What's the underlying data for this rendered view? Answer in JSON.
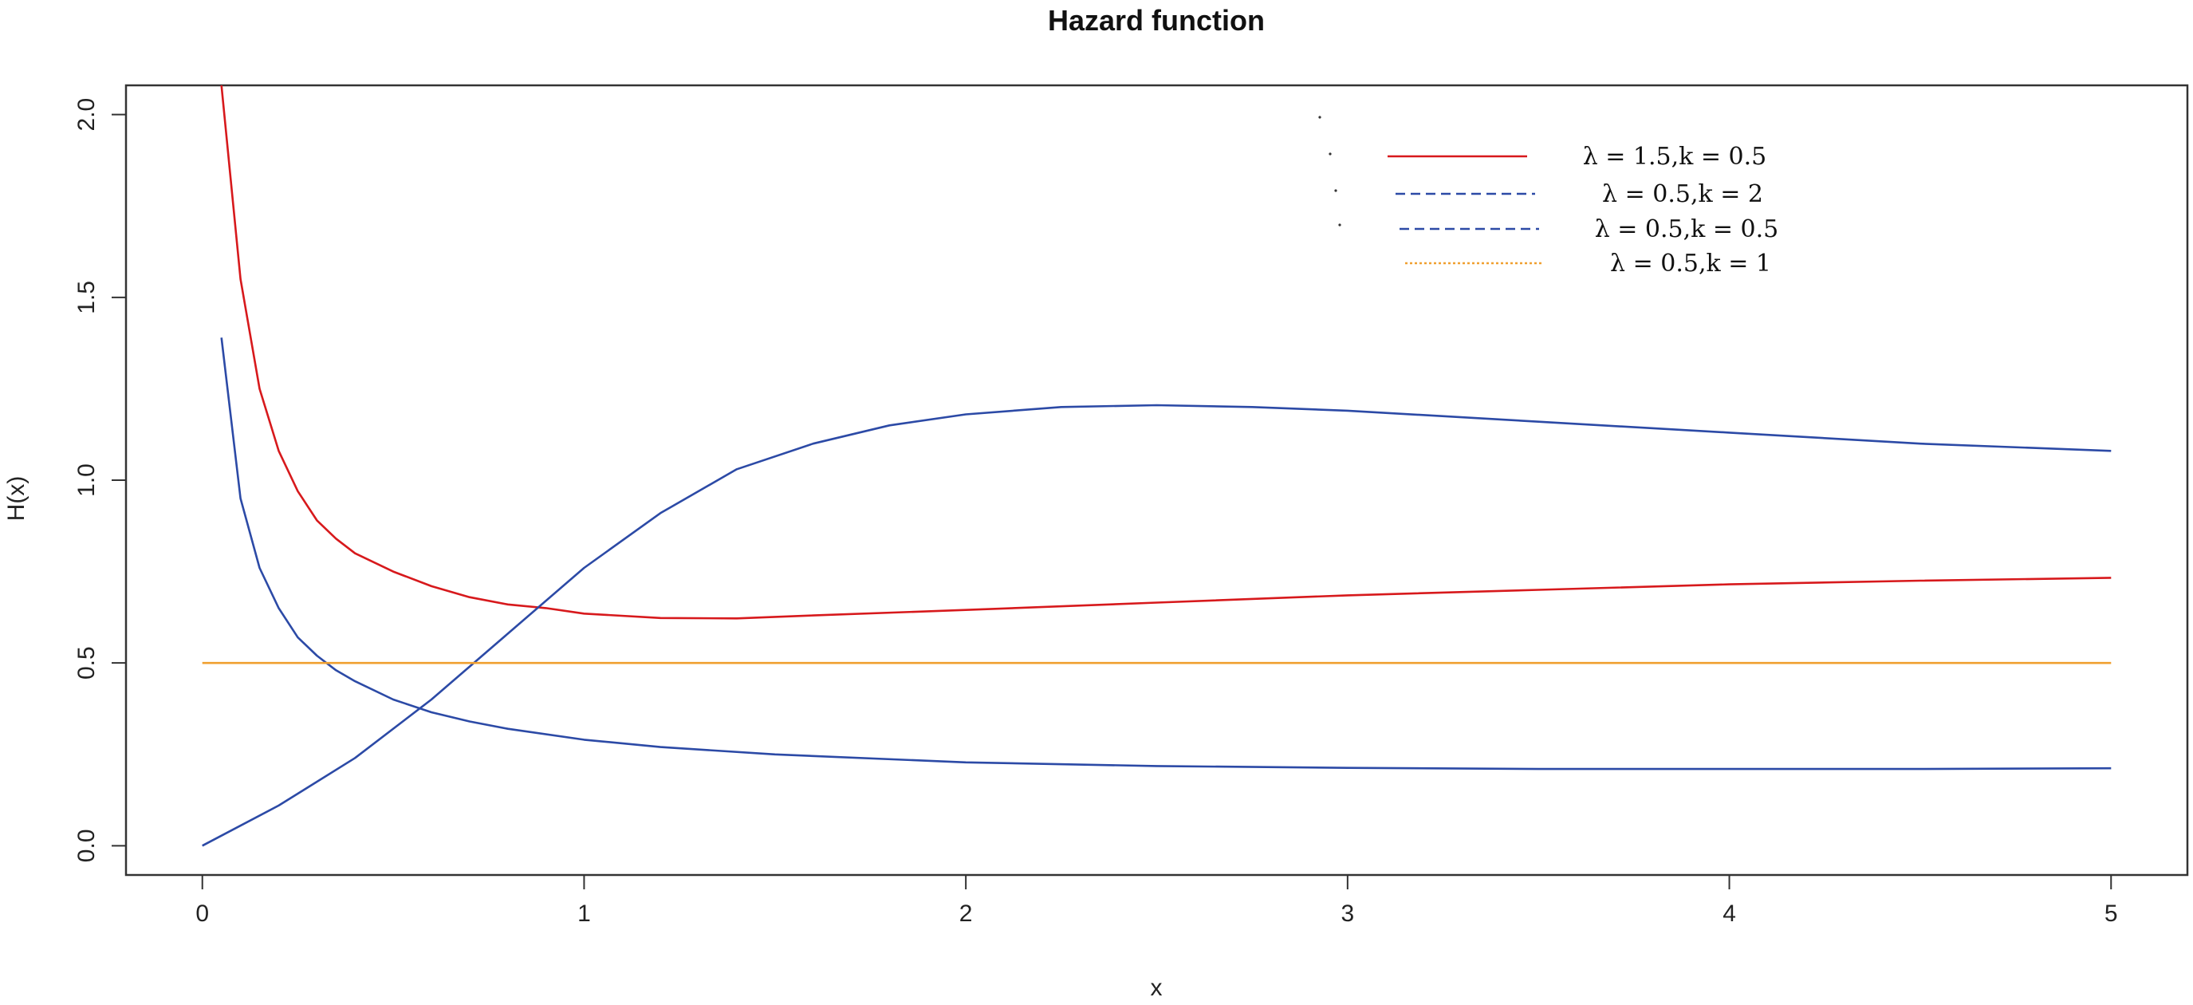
{
  "chart_data": {
    "type": "line",
    "title": "Hazard function",
    "xlabel": "x",
    "ylabel": "H(x)",
    "xlim": [
      -0.2,
      5.2
    ],
    "ylim": [
      -0.08,
      2.08
    ],
    "x_ticks": [
      0,
      1,
      2,
      3,
      4,
      5
    ],
    "x_tick_labels": [
      "0",
      "1",
      "2",
      "3",
      "4",
      "5"
    ],
    "y_ticks": [
      0.0,
      0.5,
      1.0,
      1.5,
      2.0
    ],
    "y_tick_labels": [
      "0.0",
      "0.5",
      "1.0",
      "1.5",
      "2.0"
    ],
    "grid": false,
    "legend_position": "top-right",
    "series": [
      {
        "name": "λ = 1.5,k = 0.5",
        "color": "#d7191c",
        "dash": "solid",
        "x": [
          0.05,
          0.1,
          0.15,
          0.2,
          0.25,
          0.3,
          0.35,
          0.4,
          0.5,
          0.6,
          0.7,
          0.8,
          0.9,
          1.0,
          1.2,
          1.4,
          1.6,
          2.0,
          2.5,
          3.0,
          3.5,
          4.0,
          4.5,
          5.0
        ],
        "values": [
          2.08,
          1.55,
          1.25,
          1.08,
          0.97,
          0.89,
          0.84,
          0.8,
          0.75,
          0.71,
          0.68,
          0.66,
          0.65,
          0.635,
          0.623,
          0.622,
          0.63,
          0.645,
          0.665,
          0.685,
          0.7,
          0.715,
          0.725,
          0.733
        ]
      },
      {
        "name": "λ = 0.5,k = 2",
        "color": "#2c4aa6",
        "dash": "dashed",
        "x": [
          0.0,
          0.2,
          0.4,
          0.6,
          0.8,
          1.0,
          1.2,
          1.4,
          1.6,
          1.8,
          2.0,
          2.25,
          2.5,
          2.75,
          3.0,
          3.5,
          4.0,
          4.5,
          5.0
        ],
        "values": [
          0.0,
          0.11,
          0.24,
          0.4,
          0.58,
          0.76,
          0.91,
          1.03,
          1.1,
          1.15,
          1.18,
          1.2,
          1.205,
          1.2,
          1.19,
          1.16,
          1.13,
          1.1,
          1.08
        ]
      },
      {
        "name": "λ = 0.5,k = 0.5",
        "color": "#2c4aa6",
        "dash": "dashed",
        "x": [
          0.05,
          0.1,
          0.15,
          0.2,
          0.25,
          0.3,
          0.35,
          0.4,
          0.5,
          0.6,
          0.7,
          0.8,
          1.0,
          1.2,
          1.5,
          2.0,
          2.5,
          3.0,
          3.5,
          4.0,
          4.5,
          5.0
        ],
        "values": [
          1.39,
          0.95,
          0.76,
          0.65,
          0.57,
          0.52,
          0.48,
          0.45,
          0.4,
          0.365,
          0.34,
          0.32,
          0.29,
          0.27,
          0.25,
          0.228,
          0.218,
          0.213,
          0.21,
          0.21,
          0.21,
          0.212
        ]
      },
      {
        "name": "λ = 0.5,k = 1",
        "color": "#f0a030",
        "dash": "dotted",
        "x": [
          0.0,
          5.0
        ],
        "values": [
          0.5,
          0.5
        ]
      }
    ]
  }
}
